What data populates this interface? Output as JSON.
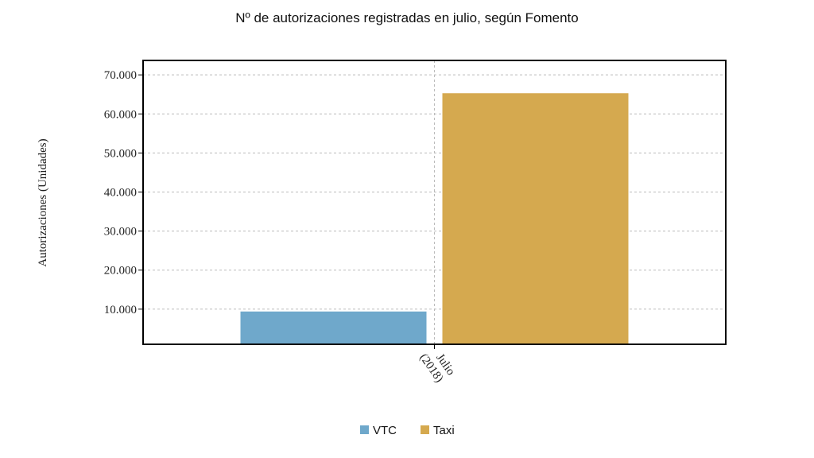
{
  "chart_data": {
    "type": "bar",
    "title": "Nº de autorizaciones registradas en julio, según Fomento",
    "y_label": "Autorizaciones (Unidades)",
    "categories": [
      "Julio (2018)"
    ],
    "series": [
      {
        "name": "VTC",
        "color": "#6fa8cb",
        "values": [
          9400
        ]
      },
      {
        "name": "Taxi",
        "color": "#d5a94f",
        "values": [
          65300
        ]
      }
    ],
    "ylim": [
      1000,
      73700
    ],
    "yticks": [
      {
        "value": 10000,
        "label": "10.000"
      },
      {
        "value": 20000,
        "label": "20.000"
      },
      {
        "value": 30000,
        "label": "30.000"
      },
      {
        "value": 40000,
        "label": "40.000"
      },
      {
        "value": 50000,
        "label": "50.000"
      },
      {
        "value": 60000,
        "label": "60.000"
      },
      {
        "value": 70000,
        "label": "70.000"
      }
    ],
    "grid": true,
    "legend": "bottom"
  }
}
